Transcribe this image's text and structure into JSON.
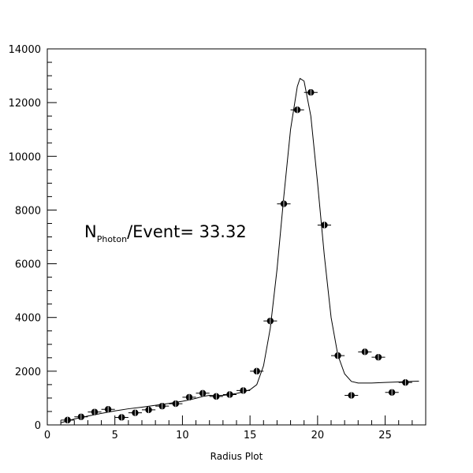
{
  "chart_data": {
    "type": "scatter",
    "title": "",
    "xlabel": "Radius Plot",
    "ylabel": "",
    "xlim": [
      0,
      28
    ],
    "ylim": [
      0,
      14000
    ],
    "x_ticks": [
      0,
      5,
      10,
      15,
      20,
      25
    ],
    "y_ticks": [
      0,
      2000,
      4000,
      6000,
      8000,
      10000,
      12000,
      14000
    ],
    "x_tick_labels": [
      "0",
      "5",
      "10",
      "15",
      "20",
      "25"
    ],
    "y_tick_labels": [
      "0",
      "2000",
      "4000",
      "6000",
      "8000",
      "10000",
      "12000",
      "14000"
    ],
    "grid": false,
    "annotation": {
      "main": "N",
      "subscript": "Photon",
      "rest": "/Event= 33.32"
    },
    "series": [
      {
        "type": "scatter",
        "x_error": 0.5,
        "points": [
          [
            1.5,
            180
          ],
          [
            2.5,
            300
          ],
          [
            3.5,
            480
          ],
          [
            4.5,
            580
          ],
          [
            5.5,
            280
          ],
          [
            6.5,
            450
          ],
          [
            7.5,
            560
          ],
          [
            8.5,
            700
          ],
          [
            9.5,
            790
          ],
          [
            10.5,
            1030
          ],
          [
            11.5,
            1180
          ],
          [
            12.5,
            1060
          ],
          [
            13.5,
            1130
          ],
          [
            14.5,
            1280
          ],
          [
            15.5,
            2000
          ],
          [
            16.5,
            3870
          ],
          [
            17.5,
            8230
          ],
          [
            18.5,
            11730
          ],
          [
            19.5,
            12380
          ],
          [
            20.5,
            7440
          ],
          [
            21.5,
            2580
          ],
          [
            22.5,
            1100
          ],
          [
            23.5,
            2720
          ],
          [
            24.5,
            2520
          ],
          [
            25.5,
            1210
          ],
          [
            26.5,
            1580
          ]
        ]
      },
      {
        "type": "line",
        "points": [
          [
            1.0,
            80
          ],
          [
            2.0,
            220
          ],
          [
            3.0,
            330
          ],
          [
            4.0,
            430
          ],
          [
            5.0,
            520
          ],
          [
            6.0,
            600
          ],
          [
            7.0,
            660
          ],
          [
            8.0,
            730
          ],
          [
            9.0,
            800
          ],
          [
            10.0,
            880
          ],
          [
            10.5,
            930
          ],
          [
            11.0,
            990
          ],
          [
            11.5,
            1060
          ],
          [
            12.0,
            1100
          ],
          [
            12.5,
            1090
          ],
          [
            13.0,
            1100
          ],
          [
            13.5,
            1130
          ],
          [
            14.0,
            1170
          ],
          [
            14.5,
            1230
          ],
          [
            15.0,
            1310
          ],
          [
            15.5,
            1500
          ],
          [
            16.0,
            2200
          ],
          [
            16.5,
            3600
          ],
          [
            17.0,
            5800
          ],
          [
            17.5,
            8500
          ],
          [
            18.0,
            11000
          ],
          [
            18.5,
            12600
          ],
          [
            18.7,
            12900
          ],
          [
            19.0,
            12800
          ],
          [
            19.5,
            11500
          ],
          [
            20.0,
            9000
          ],
          [
            20.5,
            6300
          ],
          [
            21.0,
            4000
          ],
          [
            21.5,
            2600
          ],
          [
            22.0,
            1900
          ],
          [
            22.5,
            1620
          ],
          [
            23.0,
            1560
          ],
          [
            24.0,
            1560
          ],
          [
            25.0,
            1580
          ],
          [
            26.0,
            1600
          ],
          [
            27.0,
            1620
          ],
          [
            27.5,
            1630
          ]
        ]
      }
    ]
  }
}
